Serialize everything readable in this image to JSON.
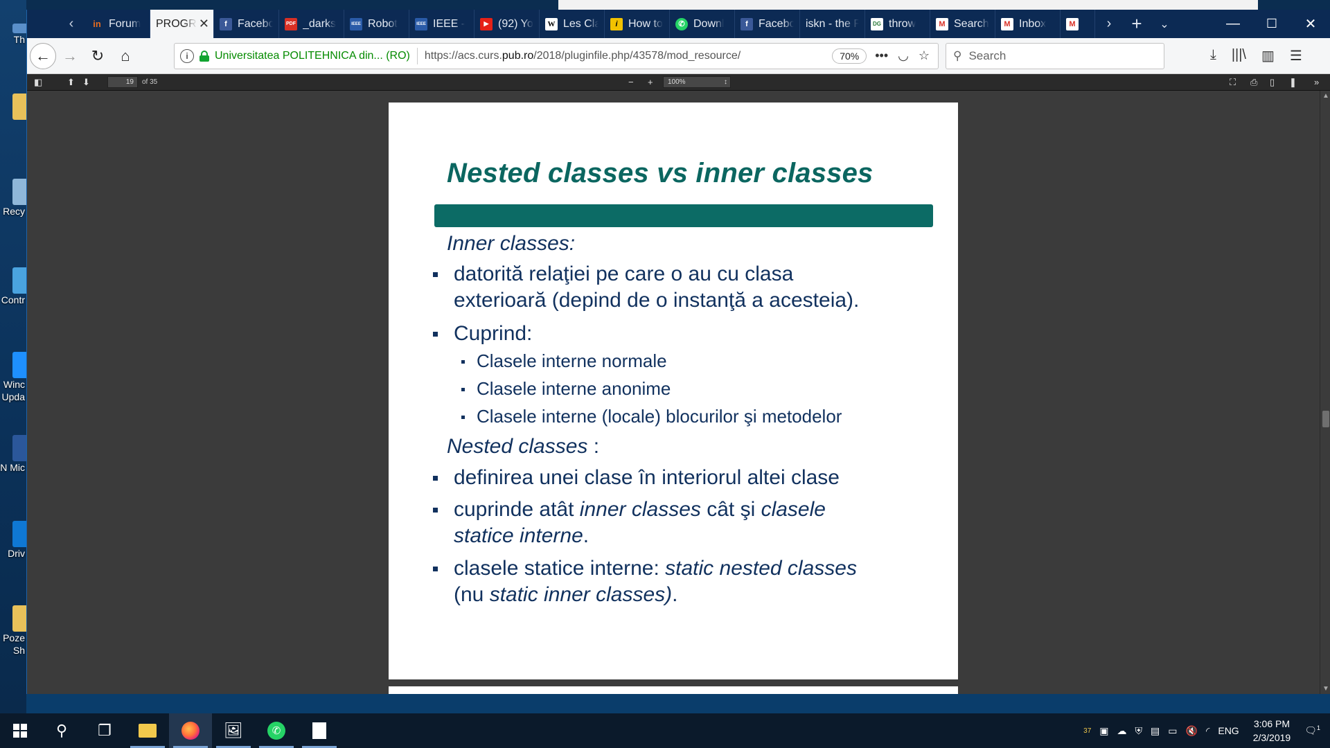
{
  "desktop": {
    "icons": [
      {
        "name": "desktop-icon-this-pc",
        "label": "Th",
        "color": "#5a8fc9"
      },
      {
        "name": "desktop-icon-folder",
        "label": "",
        "color": "#e8c15a"
      },
      {
        "name": "desktop-icon-recycle-bin",
        "label": "Recy",
        "color": "#8fb7d9"
      },
      {
        "name": "desktop-icon-control-panel",
        "label": "Contr",
        "color": "#4aa3df"
      },
      {
        "name": "desktop-icon-windows-update",
        "label": "Winc Upda",
        "color": "#1e90ff"
      },
      {
        "name": "desktop-icon-word",
        "label": "N Mic",
        "color": "#2b579a"
      },
      {
        "name": "desktop-icon-drive",
        "label": "Driv",
        "color": "#0f78d4"
      },
      {
        "name": "desktop-icon-pictures",
        "label": "Poze Sh",
        "color": "#e8c15a"
      }
    ]
  },
  "browser": {
    "tabs": [
      {
        "label": "Forum",
        "icon": "in",
        "color": "#e66c1f",
        "active": false
      },
      {
        "label": "PROGR",
        "icon": "",
        "color": "",
        "active": true
      },
      {
        "label": "Facebo",
        "icon": "f",
        "color": "#3b5998",
        "active": false
      },
      {
        "label": "_darks",
        "icon": "PDF",
        "color": "#d93025",
        "active": false
      },
      {
        "label": "Robot",
        "icon": "IEEE",
        "color": "#2a5ba8",
        "active": false
      },
      {
        "label": "IEEE -",
        "icon": "IEEE",
        "color": "#2a5ba8",
        "active": false
      },
      {
        "label": "(92) Yo",
        "icon": "▶",
        "color": "#e62117",
        "active": false
      },
      {
        "label": "Les Cla",
        "icon": "W",
        "color": "#ffffff",
        "active": false
      },
      {
        "label": "How to",
        "icon": "i",
        "color": "#f2c200",
        "active": false
      },
      {
        "label": "Downl",
        "icon": "✆",
        "color": "#25d366",
        "active": false
      },
      {
        "label": "Facebo",
        "icon": "f",
        "color": "#3b5998",
        "active": false
      },
      {
        "label": "iskn - the F",
        "icon": "",
        "color": "",
        "active": false
      },
      {
        "label": "throw",
        "icon": "DG",
        "color": "#ffffff",
        "active": false
      },
      {
        "label": "Search",
        "icon": "M",
        "color": "#ffffff",
        "active": false
      },
      {
        "label": "Inbox",
        "icon": "M",
        "color": "#ffffff",
        "active": false
      },
      {
        "label": "",
        "icon": "M",
        "color": "#ffffff",
        "active": false
      }
    ],
    "url_org": "Universitatea POLITEHNICA din... (RO)",
    "url_prefix": "https://acs.curs.",
    "url_domain": "pub.ro",
    "url_path": "/2018/pluginfile.php/43578/mod_resource/",
    "zoom": "70%",
    "search_placeholder": "Search"
  },
  "pdf_toolbar": {
    "page_number": "19",
    "page_count": "of 35",
    "zoom_select": "100%"
  },
  "slide": {
    "title": "Nested classes vs inner classes",
    "inner_heading": "Inner classes:",
    "inner_bullet_1_line1": "datorită relaţiei pe care o au cu clasa",
    "inner_bullet_1_line2": "exterioară (depind de o instanţă a acesteia).",
    "inner_bullet_2": "Cuprind:",
    "sub_1": "Clasele interne normale",
    "sub_2": "Clasele interne anonime",
    "sub_3": "Clasele interne (locale) blocurilor şi metodelor",
    "nested_heading": "Nested classes",
    "nested_colon": " :",
    "nested_bullet_1": "definirea unei clase în interiorul altei clase",
    "nested_bullet_2_a": "cuprinde atât ",
    "nested_bullet_2_b": "inner classes",
    "nested_bullet_2_c": " cât şi ",
    "nested_bullet_2_d": "clasele",
    "nested_bullet_2_e": "statice interne",
    "nested_bullet_2_f": ".",
    "nested_bullet_3_a": "clasele statice interne: ",
    "nested_bullet_3_b": "static nested classes",
    "nested_bullet_3_c": "(nu ",
    "nested_bullet_3_d": "static inner classes)",
    "nested_bullet_3_e": "."
  },
  "taskbar": {
    "notification_count": "37",
    "language": "ENG",
    "time": "3:06 PM",
    "date": "2/3/2019",
    "action_center_badge": "1"
  }
}
